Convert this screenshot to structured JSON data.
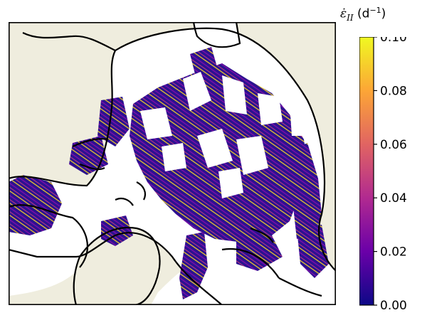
{
  "colorbar": {
    "symbol": "ε̇",
    "subscript": "II",
    "unit_open": "(d",
    "unit_exp": "−1",
    "unit_close": ")",
    "min": 0.0,
    "max": 0.1,
    "tick_values": [
      0.0,
      0.02,
      0.04,
      0.06,
      0.08,
      0.1
    ],
    "tick_labels": [
      "0.00",
      "0.02",
      "0.04",
      "0.06",
      "0.08",
      "0.10"
    ],
    "colormap": "plasma",
    "colormap_stops": [
      "#0d0887",
      "#6a00a8",
      "#b12a90",
      "#e16462",
      "#fca636",
      "#f0f921"
    ]
  },
  "map": {
    "land_color": "#efedde",
    "ocean_color": "#ffffff",
    "coastline_color": "#000000",
    "data_low_color": "#2a0f8f",
    "data_high_color": "#f5e61f"
  }
}
